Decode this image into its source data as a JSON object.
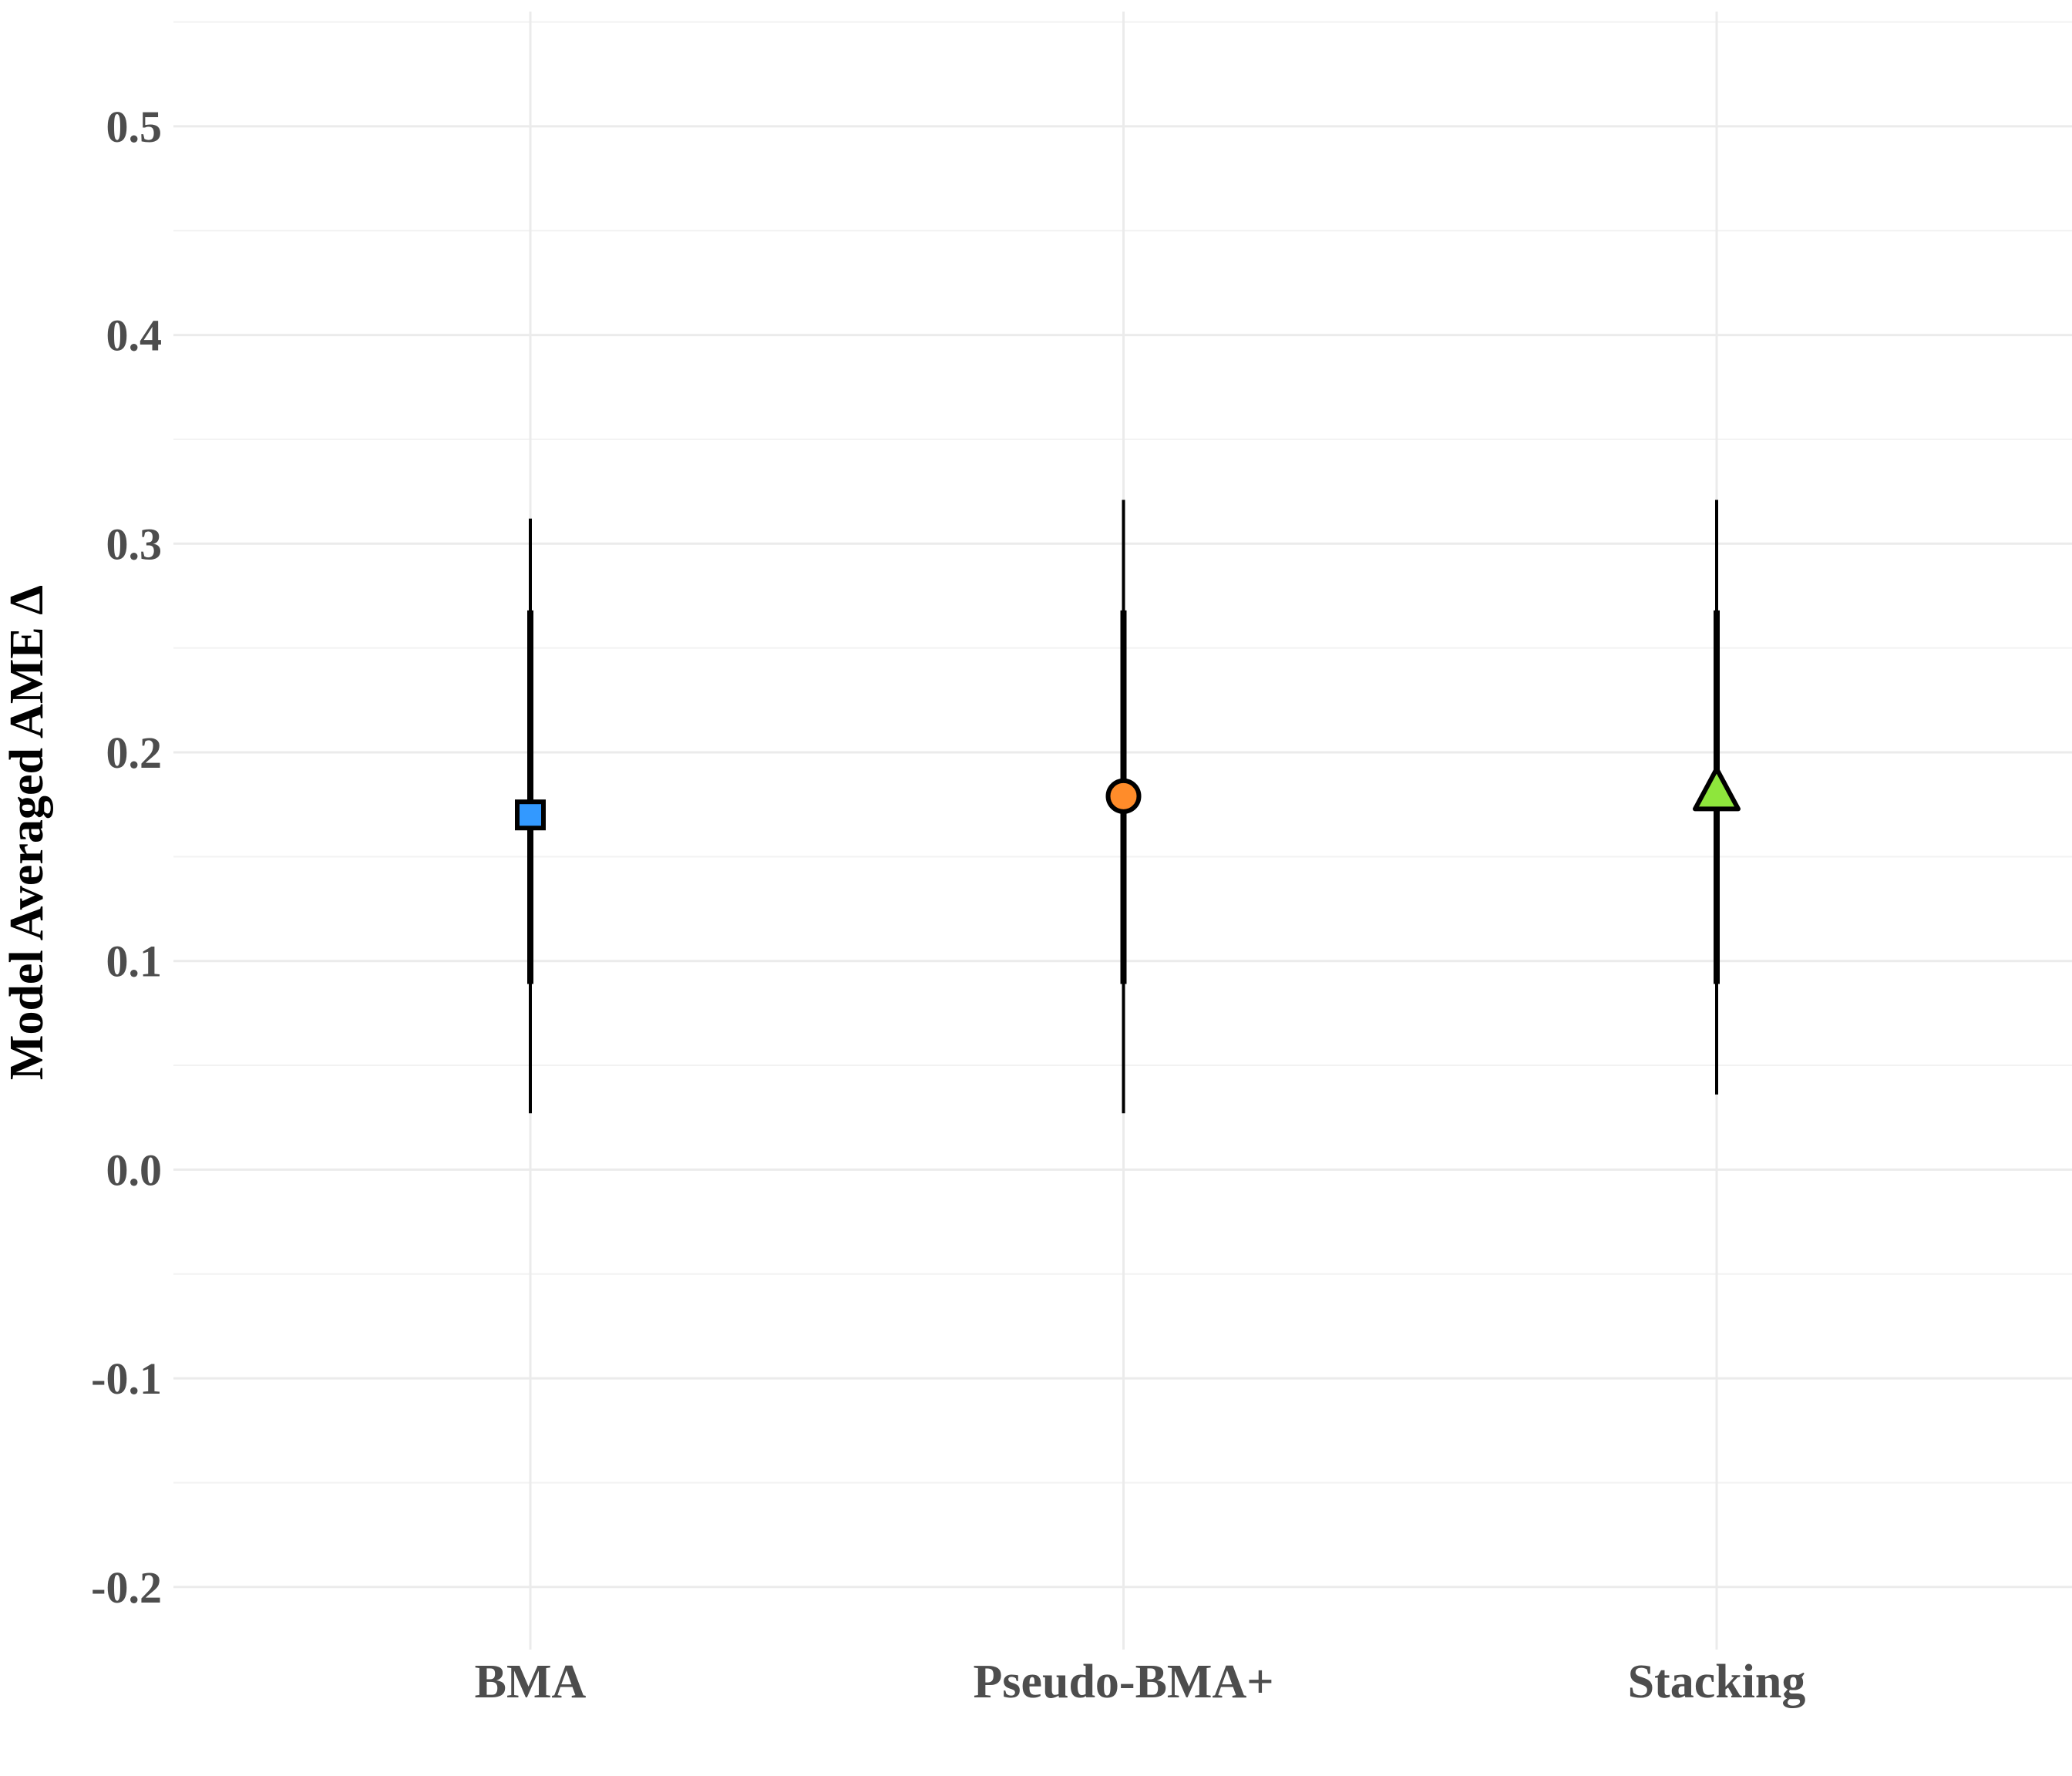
{
  "chart_data": {
    "type": "scatter",
    "subtype": "pointrange",
    "title": "",
    "xlabel": "",
    "ylabel": "Model Averaged AME Δ",
    "categories": [
      "BMA",
      "Pseudo-BMA+",
      "Stacking"
    ],
    "ylim": [
      -0.23,
      0.555
    ],
    "yticks": [
      -0.2,
      -0.1,
      0.0,
      0.1,
      0.2,
      0.3,
      0.4,
      0.5
    ],
    "ytick_labels": [
      "-0.2",
      "-0.1",
      "0.0",
      "0.1",
      "0.2",
      "0.3",
      "0.4",
      "0.5"
    ],
    "grid": true,
    "legend": "none",
    "points": [
      {
        "category": "BMA",
        "estimate": 0.17,
        "inner": [
          0.089,
          0.268
        ],
        "outer": [
          0.027,
          0.312
        ],
        "shape": "square",
        "color": "#3399ff"
      },
      {
        "category": "Pseudo-BMA+",
        "estimate": 0.179,
        "inner": [
          0.089,
          0.268
        ],
        "outer": [
          0.027,
          0.321
        ],
        "shape": "circle",
        "color": "#ff8c2a"
      },
      {
        "category": "Stacking",
        "estimate": 0.181,
        "inner": [
          0.089,
          0.268
        ],
        "outer": [
          0.036,
          0.321
        ],
        "shape": "triangle",
        "color": "#8ee63c"
      }
    ]
  }
}
